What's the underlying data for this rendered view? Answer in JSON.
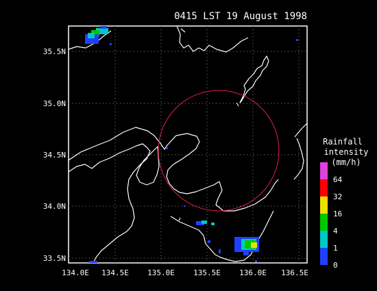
{
  "title": "0415 LST 19 August 1998",
  "map": {
    "x_ticks": [
      "134.0E",
      "134.5E",
      "135.0E",
      "135.5E",
      "136.0E",
      "136.5E"
    ],
    "y_ticks": [
      "35.5N",
      "35.0N",
      "34.5N",
      "34.0N",
      "33.5N"
    ],
    "grid": "dotted",
    "coastline_color": "#ffffff",
    "range_circle_color": "#e0204a"
  },
  "legend": {
    "title_lines": [
      "Rainfall",
      "intensity",
      "(mm/h)"
    ],
    "labels": [
      "0",
      "1",
      "4",
      "16",
      "32",
      "64"
    ],
    "colors": [
      "#2040ff",
      "#00c8c8",
      "#00c800",
      "#f0e000",
      "#ff0000",
      "#e040e0"
    ]
  }
}
